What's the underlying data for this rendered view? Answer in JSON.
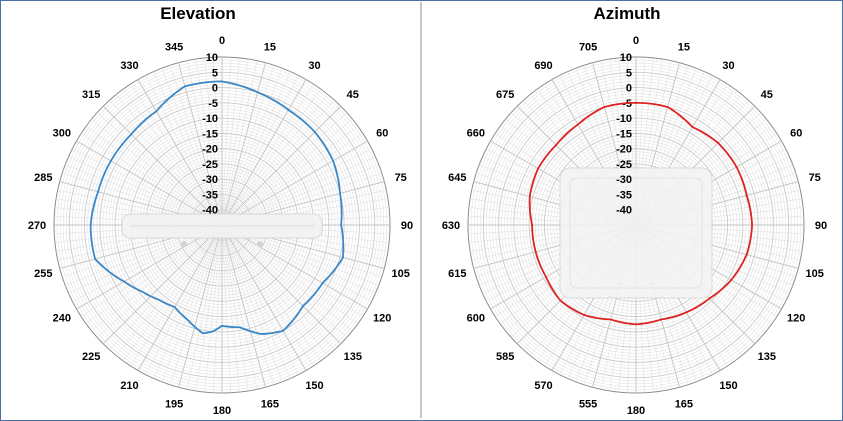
{
  "chart_data": [
    {
      "type": "polar-line",
      "title": "Elevation",
      "angle_ticks": [
        "0",
        "15",
        "30",
        "45",
        "60",
        "75",
        "90",
        "105",
        "120",
        "135",
        "150",
        "165",
        "180",
        "195",
        "210",
        "225",
        "240",
        "255",
        "270",
        "285",
        "300",
        "315",
        "330",
        "345"
      ],
      "radial_ticks": [
        "10",
        "5",
        "0",
        "-5",
        "-10",
        "-15",
        "-20",
        "-25",
        "-30",
        "-35",
        "-40"
      ],
      "rlim": [
        -45,
        10
      ],
      "series": [
        {
          "color": "#3a87c8",
          "angle": [
            0,
            15,
            30,
            45,
            60,
            75,
            90,
            105,
            120,
            135,
            150,
            160,
            170,
            180,
            185,
            190,
            200,
            210,
            220,
            230,
            240,
            255,
            270,
            285,
            300,
            315,
            330,
            345,
            360
          ],
          "values": [
            2,
            0,
            -1.5,
            -2,
            -3,
            -5,
            -6,
            -4,
            -7,
            -7.5,
            -5,
            -7,
            -11,
            -12,
            -10,
            -9,
            -12,
            -14,
            -13,
            -11,
            -8,
            -2,
            -2,
            -3,
            -3,
            -3,
            -2,
            2,
            2
          ]
        }
      ]
    },
    {
      "type": "polar-line",
      "title": "Azimuth",
      "angle_ticks": [
        "0",
        "15",
        "30",
        "45",
        "60",
        "75",
        "90",
        "105",
        "120",
        "135",
        "150",
        "165",
        "180",
        "555",
        "570",
        "585",
        "600",
        "615",
        "630",
        "645",
        "660",
        "675",
        "690",
        "705"
      ],
      "radial_ticks": [
        "10",
        "5",
        "0",
        "-5",
        "-10",
        "-15",
        "-20",
        "-25",
        "-30",
        "-35",
        "-40"
      ],
      "rlim": [
        -45,
        10
      ],
      "series": [
        {
          "color": "#dd2222",
          "angle": [
            0,
            15,
            30,
            45,
            60,
            75,
            90,
            105,
            120,
            135,
            150,
            165,
            180,
            195,
            210,
            225,
            240,
            255,
            270,
            285,
            300,
            315,
            330,
            345,
            360
          ],
          "values": [
            -5,
            -5,
            -8,
            -7,
            -7,
            -7.5,
            -7,
            -7.5,
            -9,
            -11,
            -12,
            -13,
            -12.5,
            -13,
            -11,
            -10,
            -11,
            -11,
            -11,
            -9,
            -8,
            -8,
            -7,
            -5,
            -5
          ]
        }
      ]
    }
  ]
}
